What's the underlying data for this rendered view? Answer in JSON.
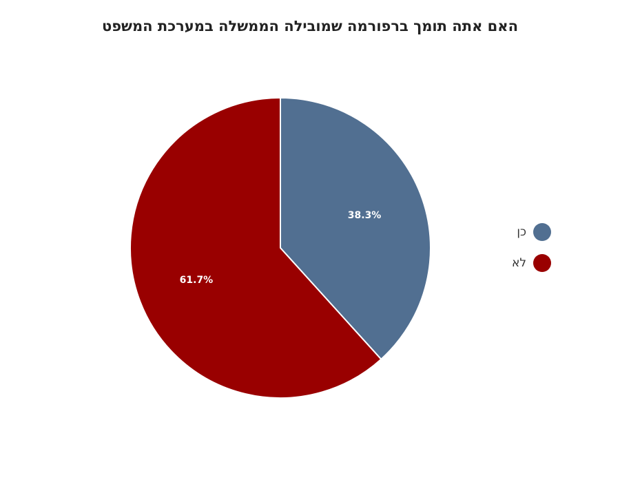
{
  "chart_data": {
    "type": "pie",
    "title": "האם אתה תומך ברפורמה שמובילה הממשלה במערכת המשפט",
    "slices": [
      {
        "label": "כן",
        "value": 38.3,
        "display": "38.3%",
        "color": "#516f91"
      },
      {
        "label": "לא",
        "value": 61.7,
        "display": "61.7%",
        "color": "#990000"
      }
    ],
    "legend_placement": "right"
  }
}
